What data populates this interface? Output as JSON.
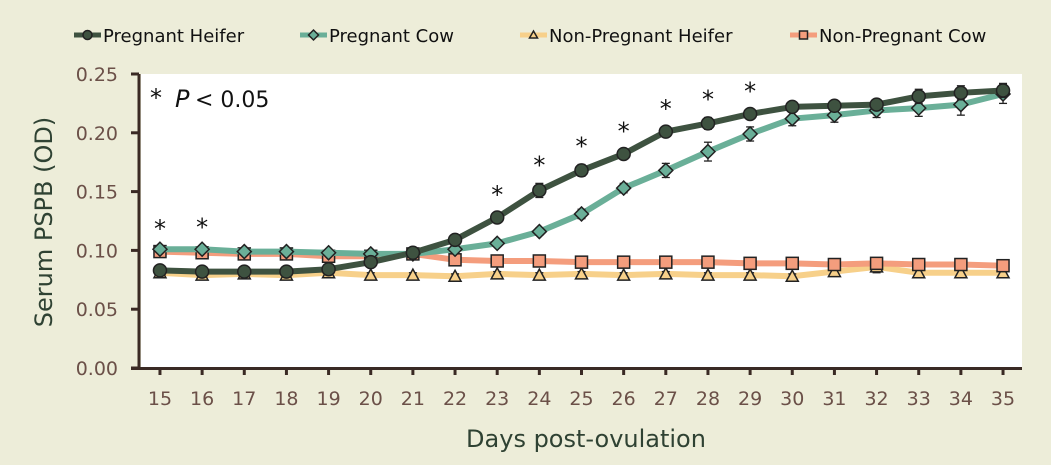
{
  "chart_data": {
    "type": "line",
    "title": "",
    "xlabel": "Days post-ovulation",
    "ylabel": "Serum PSPB (OD)",
    "annotation": {
      "star": "*",
      "p_symbol": "P",
      "p_text": "< 0.05"
    },
    "x": [
      15,
      16,
      17,
      18,
      19,
      20,
      21,
      22,
      23,
      24,
      25,
      26,
      27,
      28,
      29,
      30,
      31,
      32,
      33,
      34,
      35
    ],
    "xlim": [
      14.55,
      35.45
    ],
    "ylim": [
      0,
      0.25
    ],
    "yticks": [
      "0.00",
      "0.05",
      "0.10",
      "0.15",
      "0.20",
      "0.25"
    ],
    "significant_days": [
      15,
      16,
      23,
      24,
      25,
      26,
      27,
      28,
      29
    ],
    "legend_position": "top",
    "grid": false,
    "series": [
      {
        "name": "Pregnant Heifer",
        "color": "#3e5240",
        "marker": "circle",
        "values": [
          0.083,
          0.082,
          0.082,
          0.082,
          0.084,
          0.09,
          0.098,
          0.109,
          0.128,
          0.151,
          0.168,
          0.182,
          0.201,
          0.208,
          0.216,
          0.222,
          0.223,
          0.224,
          0.231,
          0.234,
          0.236
        ],
        "errors": [
          0.002,
          0.002,
          0.002,
          0.002,
          0.002,
          0.002,
          0.003,
          0.003,
          0.004,
          0.006,
          0.005,
          0.004,
          0.004,
          0.005,
          0.004,
          0.004,
          0.004,
          0.004,
          0.006,
          0.006,
          0.006
        ]
      },
      {
        "name": "Pregnant Cow",
        "color": "#6aaf98",
        "marker": "diamond",
        "values": [
          0.101,
          0.101,
          0.099,
          0.099,
          0.098,
          0.097,
          0.097,
          0.101,
          0.106,
          0.116,
          0.131,
          0.153,
          0.168,
          0.184,
          0.199,
          0.212,
          0.215,
          0.219,
          0.221,
          0.224,
          0.233
        ],
        "errors": [
          0.002,
          0.003,
          0.002,
          0.002,
          0.002,
          0.002,
          0.002,
          0.002,
          0.002,
          0.003,
          0.004,
          0.004,
          0.006,
          0.008,
          0.006,
          0.006,
          0.006,
          0.006,
          0.007,
          0.009,
          0.008
        ]
      },
      {
        "name": "Non-Pregnant Heifer",
        "color": "#f7d08a",
        "marker": "triangle",
        "values": [
          0.081,
          0.079,
          0.08,
          0.079,
          0.081,
          0.079,
          0.079,
          0.078,
          0.08,
          0.079,
          0.08,
          0.079,
          0.08,
          0.079,
          0.079,
          0.078,
          0.082,
          0.086,
          0.081,
          0.081,
          0.081
        ],
        "errors": [
          0.002,
          0.002,
          0.002,
          0.002,
          0.002,
          0.002,
          0.002,
          0.002,
          0.002,
          0.002,
          0.002,
          0.002,
          0.002,
          0.002,
          0.002,
          0.002,
          0.003,
          0.005,
          0.002,
          0.002,
          0.002
        ]
      },
      {
        "name": "Non-Pregnant Cow",
        "color": "#f49d7d",
        "marker": "square",
        "values": [
          0.099,
          0.098,
          0.097,
          0.097,
          0.095,
          0.095,
          0.097,
          0.092,
          0.091,
          0.091,
          0.09,
          0.09,
          0.09,
          0.09,
          0.089,
          0.089,
          0.088,
          0.089,
          0.088,
          0.088,
          0.087
        ],
        "errors": [
          0.002,
          0.002,
          0.002,
          0.002,
          0.002,
          0.002,
          0.002,
          0.002,
          0.002,
          0.002,
          0.002,
          0.002,
          0.002,
          0.002,
          0.002,
          0.002,
          0.002,
          0.002,
          0.002,
          0.002,
          0.002
        ]
      }
    ]
  }
}
